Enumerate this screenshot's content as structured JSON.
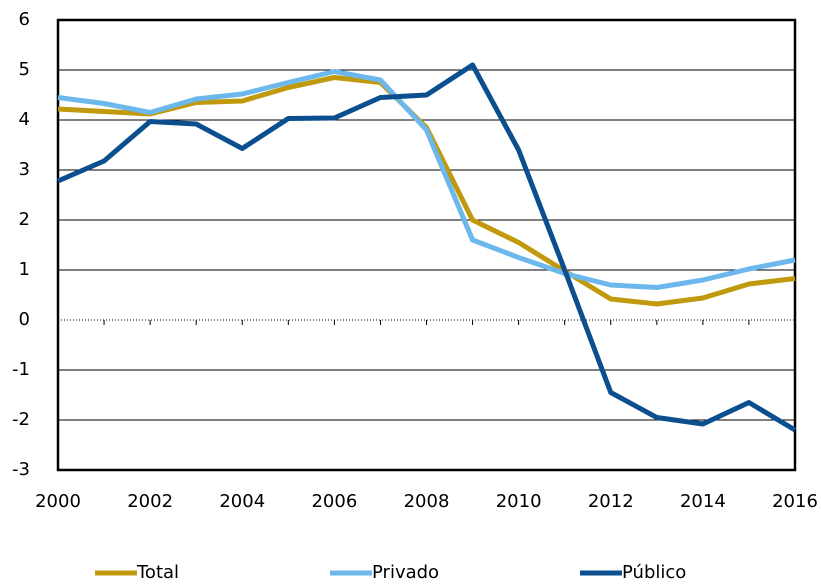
{
  "chart_data": {
    "type": "line",
    "x": [
      2000,
      2001,
      2002,
      2003,
      2004,
      2005,
      2006,
      2007,
      2008,
      2009,
      2010,
      2011,
      2012,
      2013,
      2014,
      2015,
      2016
    ],
    "series": [
      {
        "name": "Total",
        "color": "#c09a0c",
        "values": [
          4.22,
          4.17,
          4.12,
          4.35,
          4.38,
          4.65,
          4.85,
          4.75,
          3.85,
          2.0,
          1.55,
          0.98,
          0.42,
          0.32,
          0.44,
          0.72,
          0.83
        ]
      },
      {
        "name": "Privado",
        "color": "#6cb8ec",
        "values": [
          4.45,
          4.33,
          4.15,
          4.42,
          4.52,
          4.75,
          4.97,
          4.8,
          3.8,
          1.6,
          1.25,
          0.93,
          0.7,
          0.65,
          0.8,
          1.02,
          1.2
        ]
      },
      {
        "name": "Público",
        "color": "#0b4f8f",
        "values": [
          2.78,
          3.18,
          3.97,
          3.92,
          3.43,
          4.03,
          4.04,
          4.45,
          4.5,
          5.1,
          3.4,
          1.0,
          -1.45,
          -1.95,
          -2.08,
          -1.65,
          -2.2
        ]
      }
    ],
    "xlim": [
      2000,
      2016
    ],
    "xticks": [
      2000,
      2002,
      2004,
      2006,
      2008,
      2010,
      2012,
      2014,
      2016
    ],
    "ylim": [
      -3,
      6
    ],
    "yticks": [
      -3,
      -2,
      -1,
      0,
      1,
      2,
      3,
      4,
      5,
      6
    ],
    "grid": true,
    "legend": "bottom"
  }
}
